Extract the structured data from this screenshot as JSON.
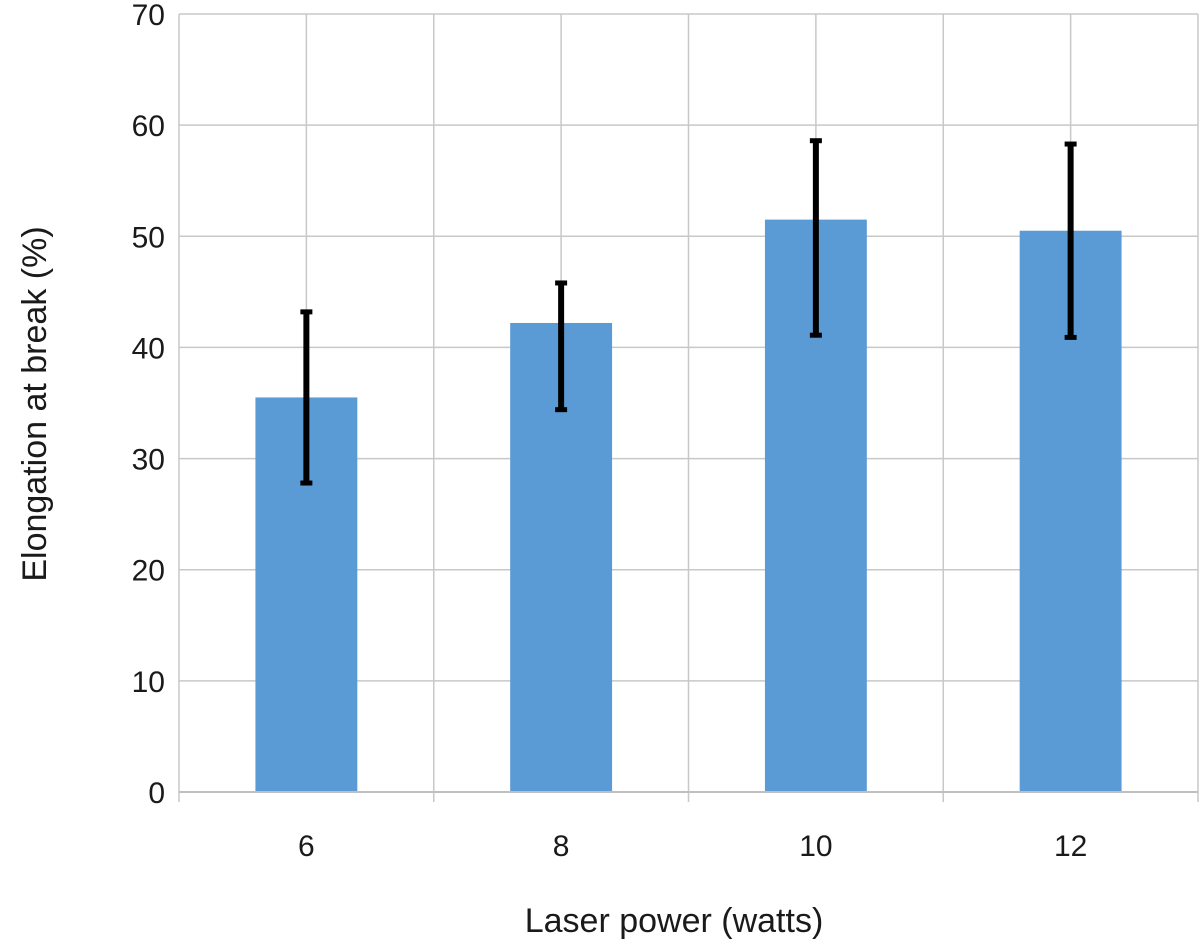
{
  "chart_data": {
    "type": "bar",
    "categories": [
      "6",
      "8",
      "10",
      "12"
    ],
    "series": [
      {
        "values": [
          35.5,
          42.2,
          51.5,
          50.5
        ],
        "error_low": [
          27.8,
          34.4,
          41.1,
          40.9
        ],
        "error_high": [
          43.2,
          45.8,
          58.6,
          58.3
        ]
      }
    ],
    "title": "",
    "xlabel": "Laser power (watts)",
    "ylabel": "Elongation at break (%)",
    "ylim": [
      0,
      70
    ],
    "yticks": [
      "0",
      "10",
      "20",
      "30",
      "40",
      "50",
      "60",
      "70"
    ],
    "grid": true,
    "legend": "none",
    "colors": {
      "bar": "#5b9bd5",
      "error_bar": "#000000",
      "grid": "#c8c8c8"
    }
  }
}
